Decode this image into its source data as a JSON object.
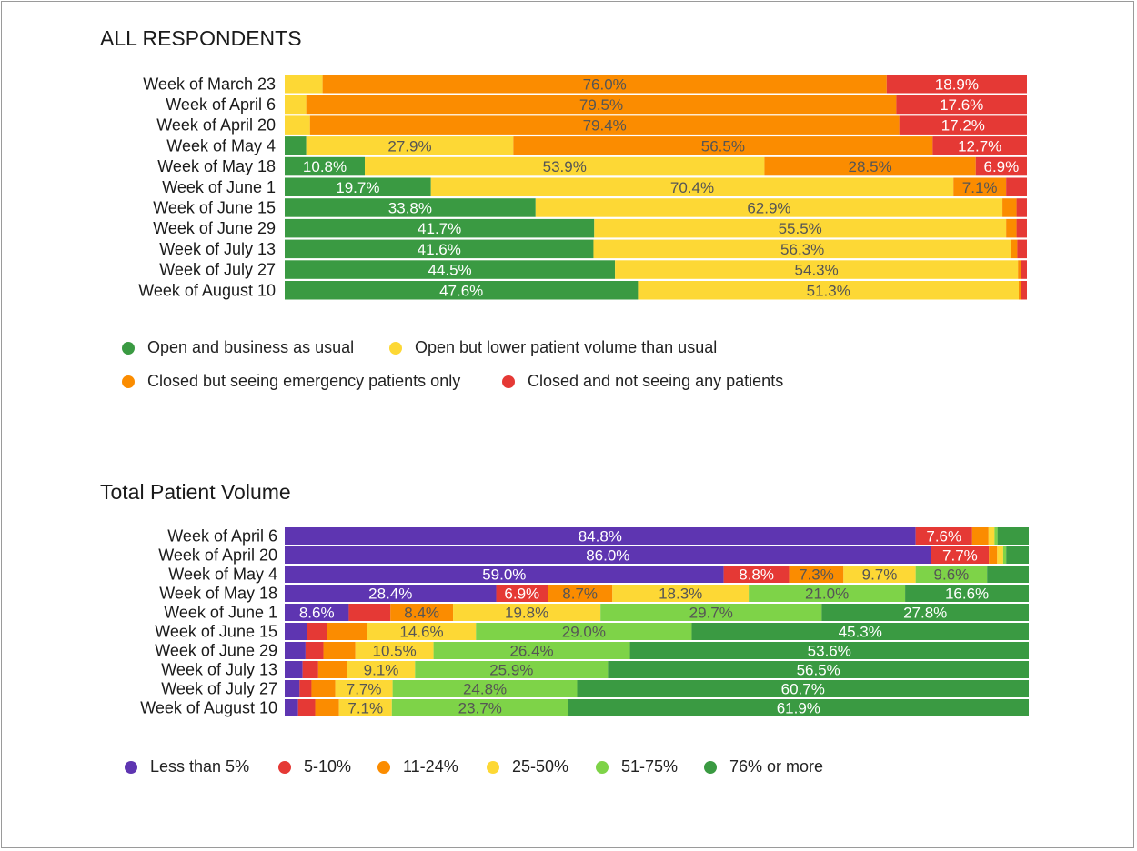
{
  "chart_data": [
    {
      "type": "bar",
      "stacked": true,
      "orientation": "horizontal",
      "normalized_percent": true,
      "title": "ALL RESPONDENTS",
      "categories": [
        "Week of March 23",
        "Week of April 6",
        "Week of April 20",
        "Week of May 4",
        "Week of May 18",
        "Week of June 1",
        "Week of June 15",
        "Week of June 29",
        "Week of July 13",
        "Week of July 27",
        "Week of August 10"
      ],
      "series": [
        {
          "name": "Open and business as usual",
          "color": "#3a9a42",
          "values": [
            0.0,
            0.0,
            0.0,
            2.9,
            10.8,
            19.7,
            33.8,
            41.7,
            41.6,
            44.5,
            47.6
          ],
          "labels": [
            "",
            "",
            "",
            "",
            "10.8%",
            "19.7%",
            "33.8%",
            "41.7%",
            "41.6%",
            "44.5%",
            "47.6%"
          ]
        },
        {
          "name": "Open but lower patient volume than usual",
          "color": "#fdd835",
          "values": [
            5.1,
            2.9,
            3.4,
            27.9,
            53.9,
            70.4,
            62.9,
            55.5,
            56.3,
            54.3,
            51.3
          ],
          "labels": [
            "",
            "",
            "",
            "27.9%",
            "53.9%",
            "70.4%",
            "62.9%",
            "55.5%",
            "56.3%",
            "54.3%",
            "51.3%"
          ]
        },
        {
          "name": "Closed but seeing emergency patients only",
          "color": "#fb8c00",
          "values": [
            76.0,
            79.5,
            79.4,
            56.5,
            28.5,
            7.1,
            1.9,
            1.4,
            0.8,
            0.4,
            0.3
          ],
          "labels": [
            "76.0%",
            "79.5%",
            "79.4%",
            "56.5%",
            "28.5%",
            "7.1%",
            "",
            "",
            "",
            "",
            ""
          ]
        },
        {
          "name": "Closed and not seeing any patients",
          "color": "#e53935",
          "values": [
            18.9,
            17.6,
            17.2,
            12.7,
            6.9,
            2.8,
            1.4,
            1.4,
            1.3,
            0.8,
            0.8
          ],
          "labels": [
            "18.9%",
            "17.6%",
            "17.2%",
            "12.7%",
            "6.9%",
            "",
            "",
            "",
            "",
            "",
            ""
          ]
        }
      ]
    },
    {
      "type": "bar",
      "stacked": true,
      "orientation": "horizontal",
      "normalized_percent": true,
      "title": "Total Patient Volume",
      "categories": [
        "Week of April 6",
        "Week of April 20",
        "Week of May 4",
        "Week of May 18",
        "Week of June 1",
        "Week of June 15",
        "Week of June 29",
        "Week of July 13",
        "Week of July 27",
        "Week of August 10"
      ],
      "series": [
        {
          "name": "Less than 5%",
          "color": "#5e35b1",
          "values": [
            84.8,
            86.0,
            59.0,
            28.4,
            8.6,
            3.0,
            2.8,
            2.4,
            2.0,
            1.8
          ],
          "labels": [
            "84.8%",
            "86.0%",
            "59.0%",
            "28.4%",
            "8.6%",
            "",
            "",
            "",
            "",
            ""
          ]
        },
        {
          "name": "5-10%",
          "color": "#e53935",
          "values": [
            7.6,
            7.7,
            8.8,
            6.9,
            5.6,
            2.7,
            2.4,
            2.1,
            1.6,
            2.3
          ],
          "labels": [
            "7.6%",
            "7.7%",
            "8.8%",
            "6.9%",
            "",
            "",
            "",
            "",
            "",
            ""
          ]
        },
        {
          "name": "11-24%",
          "color": "#fb8c00",
          "values": [
            2.2,
            1.1,
            7.3,
            8.7,
            8.4,
            5.4,
            4.3,
            3.9,
            3.2,
            3.2
          ],
          "labels": [
            "",
            "",
            "7.3%",
            "8.7%",
            "8.4%",
            "",
            "",
            "",
            "",
            ""
          ]
        },
        {
          "name": "25-50%",
          "color": "#fdd835",
          "values": [
            0.8,
            0.8,
            9.7,
            18.3,
            19.8,
            14.6,
            10.5,
            9.1,
            7.7,
            7.1
          ],
          "labels": [
            "",
            "",
            "9.7%",
            "18.3%",
            "19.8%",
            "14.6%",
            "10.5%",
            "9.1%",
            "7.7%",
            "7.1%"
          ]
        },
        {
          "name": "51-75%",
          "color": "#7ed348",
          "values": [
            0.4,
            0.4,
            9.6,
            21.0,
            29.7,
            29.0,
            26.4,
            25.9,
            24.8,
            23.7
          ],
          "labels": [
            "",
            "",
            "9.6%",
            "21.0%",
            "29.7%",
            "29.0%",
            "26.4%",
            "25.9%",
            "24.8%",
            "23.7%"
          ]
        },
        {
          "name": "76% or more",
          "color": "#3a9a42",
          "values": [
            4.2,
            3.0,
            5.6,
            16.6,
            27.8,
            45.3,
            53.6,
            56.5,
            60.7,
            61.9
          ],
          "labels": [
            "",
            "",
            "",
            "16.6%",
            "27.8%",
            "45.3%",
            "53.6%",
            "56.5%",
            "60.7%",
            "61.9%"
          ]
        }
      ]
    }
  ]
}
